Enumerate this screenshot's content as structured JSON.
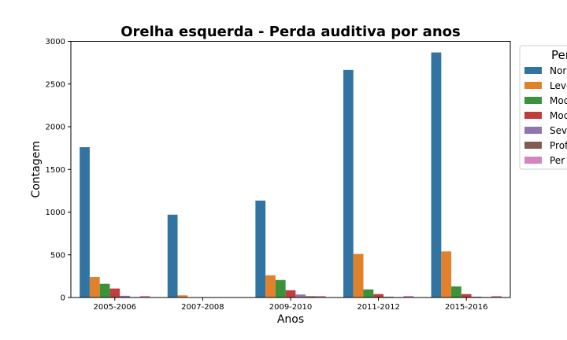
{
  "chart_data": {
    "type": "bar",
    "title": "Orelha esquerda - Perda auditiva por anos",
    "xlabel": "Anos",
    "ylabel": "Contagem",
    "ylim": [
      0,
      3000
    ],
    "yticks": [
      "0",
      "500",
      "1000",
      "1500",
      "2000",
      "2500",
      "3000"
    ],
    "categories": [
      "2005-2006",
      "2007-2008",
      "2009-2010",
      "2011-2012",
      "2015-2016"
    ],
    "legend": {
      "title": "Per",
      "placement": "right, cut off at edge"
    },
    "series": [
      {
        "name": "Norr",
        "color": "#3274a1",
        "values": [
          1760,
          970,
          1135,
          2665,
          2870
        ]
      },
      {
        "name": "Leve",
        "color": "#e1812c",
        "values": [
          240,
          25,
          260,
          510,
          540
        ]
      },
      {
        "name": "Mod",
        "color": "#3a923a",
        "values": [
          160,
          0,
          205,
          95,
          130
        ]
      },
      {
        "name": "Mod",
        "color": "#c03d3e",
        "values": [
          105,
          0,
          85,
          40,
          40
        ]
      },
      {
        "name": "Sev",
        "color": "#9372b2",
        "values": [
          20,
          0,
          35,
          10,
          10
        ]
      },
      {
        "name": "Prof",
        "color": "#845b53",
        "values": [
          5,
          0,
          15,
          5,
          5
        ]
      },
      {
        "name": "Per",
        "color": "#d684bd",
        "values": [
          18,
          0,
          18,
          18,
          18
        ]
      }
    ]
  }
}
